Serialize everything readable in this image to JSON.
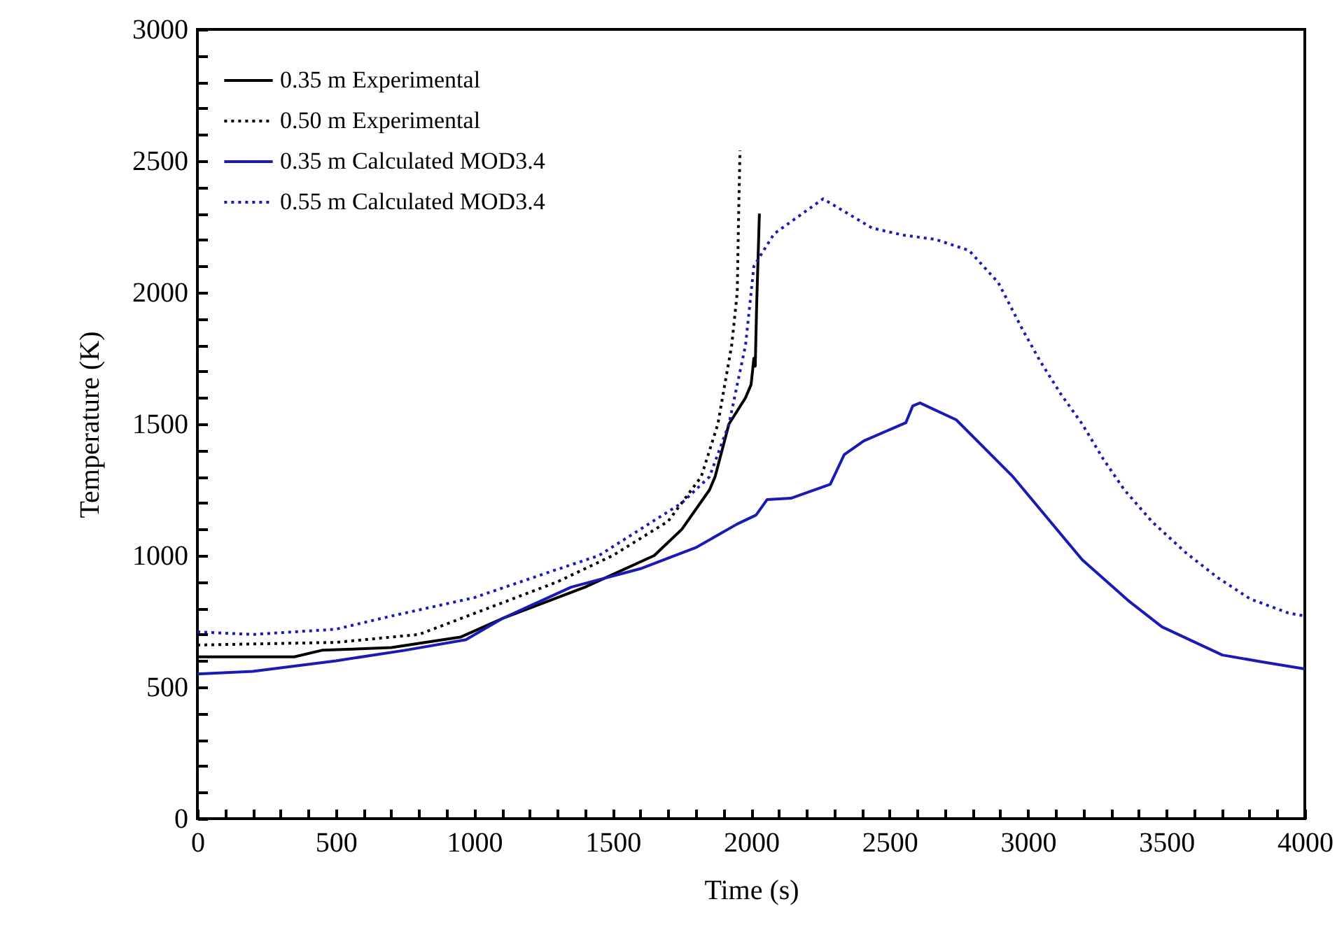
{
  "chart_data": {
    "type": "line",
    "xlabel": "Time (s)",
    "ylabel": "Temperature (K)",
    "xlim": [
      0,
      4000
    ],
    "ylim": [
      0,
      3000
    ],
    "xticks": [
      0,
      {
        "value": 100,
        "label": null
      },
      {
        "value": 200,
        "label": null
      },
      {
        "value": 300,
        "label": null
      },
      {
        "value": 400,
        "label": null
      },
      500,
      {
        "value": 600,
        "label": null
      },
      {
        "value": 700,
        "label": null
      },
      {
        "value": 800,
        "label": null
      },
      {
        "value": 900,
        "label": null
      },
      1000,
      {
        "value": 1100,
        "label": null
      },
      {
        "value": 1200,
        "label": null
      },
      {
        "value": 1300,
        "label": null
      },
      {
        "value": 1400,
        "label": null
      },
      1500,
      {
        "value": 1600,
        "label": null
      },
      {
        "value": 1700,
        "label": null
      },
      {
        "value": 1800,
        "label": null
      },
      {
        "value": 1900,
        "label": null
      },
      2000,
      {
        "value": 2100,
        "label": null
      },
      {
        "value": 2200,
        "label": null
      },
      {
        "value": 2300,
        "label": null
      },
      {
        "value": 2400,
        "label": null
      },
      2500,
      {
        "value": 2600,
        "label": null
      },
      {
        "value": 2700,
        "label": null
      },
      {
        "value": 2800,
        "label": null
      },
      {
        "value": 2900,
        "label": null
      },
      3000,
      {
        "value": 3100,
        "label": null
      },
      {
        "value": 3200,
        "label": null
      },
      {
        "value": 3300,
        "label": null
      },
      {
        "value": 3400,
        "label": null
      },
      3500,
      {
        "value": 3600,
        "label": null
      },
      {
        "value": 3700,
        "label": null
      },
      {
        "value": 3800,
        "label": null
      },
      {
        "value": 3900,
        "label": null
      },
      4000
    ],
    "yticks": [
      0,
      {
        "value": 100,
        "label": null
      },
      {
        "value": 200,
        "label": null
      },
      {
        "value": 300,
        "label": null
      },
      {
        "value": 400,
        "label": null
      },
      500,
      {
        "value": 600,
        "label": null
      },
      {
        "value": 700,
        "label": null
      },
      {
        "value": 800,
        "label": null
      },
      {
        "value": 900,
        "label": null
      },
      1000,
      {
        "value": 1100,
        "label": null
      },
      {
        "value": 1200,
        "label": null
      },
      {
        "value": 1300,
        "label": null
      },
      {
        "value": 1400,
        "label": null
      },
      1500,
      {
        "value": 1600,
        "label": null
      },
      {
        "value": 1700,
        "label": null
      },
      {
        "value": 1800,
        "label": null
      },
      {
        "value": 1900,
        "label": null
      },
      2000,
      {
        "value": 2100,
        "label": null
      },
      {
        "value": 2200,
        "label": null
      },
      {
        "value": 2300,
        "label": null
      },
      {
        "value": 2400,
        "label": null
      },
      2500,
      {
        "value": 2600,
        "label": null
      },
      {
        "value": 2700,
        "label": null
      },
      {
        "value": 2800,
        "label": null
      },
      {
        "value": 2900,
        "label": null
      },
      3000
    ],
    "grid": false,
    "legend": "top left",
    "series": [
      {
        "name": "0.35 m Experimental",
        "color": "#000000",
        "line_style": "solid",
        "x": [
          0,
          350,
          450,
          700,
          950,
          1100,
          1400,
          1650,
          1750,
          1850,
          1870,
          1920,
          1980,
          2000,
          2010,
          2015,
          2020,
          2030
        ],
        "values": [
          615,
          615,
          640,
          650,
          690,
          760,
          880,
          1000,
          1100,
          1250,
          1300,
          1500,
          1600,
          1650,
          1750,
          1720,
          1950,
          2300
        ]
      },
      {
        "name": "0.50 m Experimental",
        "color": "#000000",
        "line_style": "dotted",
        "x": [
          0,
          500,
          800,
          1000,
          1300,
          1500,
          1700,
          1820,
          1880,
          1930,
          1950,
          1955,
          1960
        ],
        "values": [
          660,
          670,
          700,
          780,
          900,
          1000,
          1130,
          1300,
          1500,
          1800,
          2000,
          2300,
          2540
        ]
      },
      {
        "name": "0.35 m Calculated MOD3.4",
        "color": "#1a1ab4",
        "line_style": "solid",
        "x": [
          0,
          200,
          500,
          750,
          970,
          1100,
          1350,
          1600,
          1800,
          1950,
          2018,
          2058,
          2144,
          2286,
          2336,
          2407,
          2559,
          2584,
          2610,
          2741,
          2943,
          3196,
          3368,
          3484,
          3702,
          3850,
          4000
        ],
        "values": [
          550,
          560,
          600,
          640,
          680,
          760,
          880,
          950,
          1030,
          1120,
          1154,
          1213,
          1218,
          1271,
          1383,
          1436,
          1505,
          1569,
          1580,
          1516,
          1303,
          984,
          824,
          729,
          622,
          595,
          569
        ]
      },
      {
        "name": "0.55 m Calculated MOD3.4",
        "color": "#1a1ab4",
        "line_style": "dotted",
        "x": [
          0,
          200,
          500,
          700,
          1000,
          1250,
          1450,
          1600,
          1750,
          1850,
          1920,
          1980,
          2010,
          2083,
          2260,
          2437,
          2549,
          2665,
          2787,
          2893,
          2979,
          3044,
          3120,
          3196,
          3272,
          3348,
          3449,
          3570,
          3687,
          3803,
          3940,
          4000
        ],
        "values": [
          710,
          700,
          720,
          770,
          840,
          930,
          1000,
          1100,
          1200,
          1300,
          1500,
          1800,
          2100,
          2223,
          2356,
          2245,
          2218,
          2202,
          2160,
          2037,
          1862,
          1739,
          1612,
          1500,
          1367,
          1250,
          1128,
          1011,
          915,
          835,
          782,
          770
        ]
      }
    ]
  }
}
